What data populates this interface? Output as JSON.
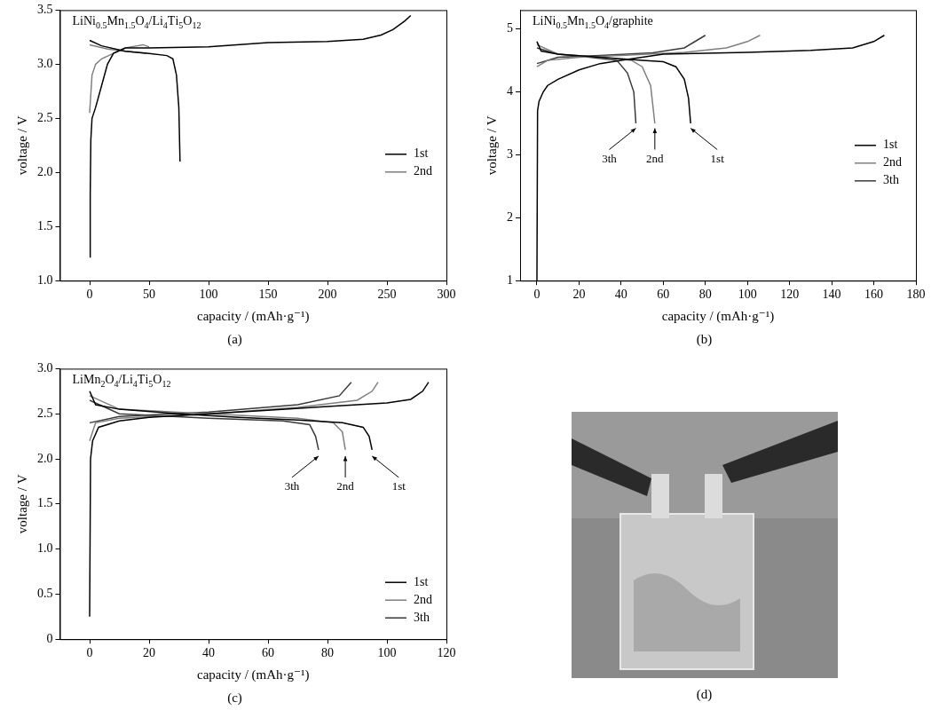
{
  "chart_data": [
    {
      "type": "line",
      "title": "LiNi0.5Mn1.5O4/Li4Ti5O12",
      "caption": "(a)",
      "x_label": "capacity / (mAh·g⁻¹)",
      "y_label": "voltage / V",
      "xlim": [
        -25,
        300
      ],
      "xticks": [
        0,
        50,
        100,
        150,
        200,
        250,
        300
      ],
      "ylim": [
        1,
        3.5
      ],
      "yticks": [
        {
          "value": 1,
          "label": "1.0"
        },
        1.5,
        {
          "value": 2,
          "label": "2.0"
        },
        2.5,
        {
          "value": 3,
          "label": "3.0"
        },
        3.5
      ],
      "grid": false,
      "legend": "center right",
      "series": [
        {
          "name": "1st",
          "color": "#000000",
          "x": [
            0,
            0.5,
            1,
            2,
            5,
            10,
            15,
            20,
            30,
            50,
            100,
            150,
            200,
            230,
            245,
            255,
            265,
            270,
            null,
            0,
            10,
            30,
            50,
            65,
            70,
            73,
            75,
            76
          ],
          "values": [
            1.22,
            1.8,
            2.3,
            2.5,
            2.6,
            2.8,
            3.0,
            3.1,
            3.15,
            3.15,
            3.16,
            3.2,
            3.21,
            3.23,
            3.27,
            3.32,
            3.4,
            3.45,
            null,
            3.22,
            3.17,
            3.12,
            3.1,
            3.08,
            3.05,
            2.9,
            2.6,
            2.1
          ]
        },
        {
          "name": "2nd",
          "color": "#7f7f7f",
          "x": [
            0,
            2,
            5,
            10,
            20,
            30,
            40,
            45,
            50,
            null,
            0,
            15,
            30,
            40,
            48
          ],
          "values": [
            2.55,
            2.9,
            3.0,
            3.05,
            3.1,
            3.15,
            3.17,
            3.18,
            3.16,
            null,
            3.18,
            3.14,
            3.12,
            3.11,
            3.1
          ]
        }
      ]
    },
    {
      "type": "line",
      "title": "LiNi0.5Mn1.5O4/graphite",
      "caption": "(b)",
      "x_label": "capacity / (mAh·g⁻¹)",
      "y_label": "voltage / V",
      "xlim": [
        -8,
        180
      ],
      "xticks": [
        0,
        20,
        40,
        60,
        80,
        100,
        120,
        140,
        160,
        180
      ],
      "ylim": [
        1,
        5.3
      ],
      "yticks": [
        1,
        2,
        3,
        4,
        5
      ],
      "grid": false,
      "legend": "center right",
      "series": [
        {
          "name": "1st",
          "color": "#000000",
          "x": [
            0,
            0.3,
            1,
            3,
            5,
            10,
            20,
            30,
            40,
            60,
            100,
            130,
            150,
            160,
            165,
            null,
            0,
            2,
            10,
            30,
            50,
            60,
            66,
            70,
            72,
            73
          ],
          "values": [
            1,
            3.7,
            3.85,
            4.0,
            4.1,
            4.2,
            4.35,
            4.45,
            4.5,
            4.6,
            4.63,
            4.66,
            4.7,
            4.8,
            4.9,
            null,
            4.8,
            4.65,
            4.6,
            4.55,
            4.5,
            4.48,
            4.4,
            4.2,
            3.9,
            3.5
          ]
        },
        {
          "name": "2nd",
          "color": "#7f7f7f",
          "x": [
            0,
            5,
            20,
            40,
            70,
            90,
            100,
            106,
            null,
            0,
            10,
            30,
            45,
            50,
            54,
            56
          ],
          "values": [
            4.4,
            4.5,
            4.55,
            4.58,
            4.63,
            4.7,
            4.8,
            4.9,
            null,
            4.75,
            4.6,
            4.55,
            4.5,
            4.4,
            4.1,
            3.5
          ]
        },
        {
          "name": "3th",
          "color": "#3a3a3a",
          "x": [
            0,
            10,
            30,
            55,
            70,
            80,
            null,
            0,
            10,
            25,
            38,
            43,
            46,
            47
          ],
          "values": [
            4.45,
            4.55,
            4.58,
            4.62,
            4.7,
            4.9,
            null,
            4.7,
            4.6,
            4.55,
            4.5,
            4.3,
            4.0,
            3.5
          ]
        }
      ],
      "annotations": [
        {
          "text": "3th",
          "x": 47,
          "y": 3.45
        },
        {
          "text": "2nd",
          "x": 56,
          "y": 3.45
        },
        {
          "text": "1st",
          "x": 73,
          "y": 3.45
        }
      ]
    },
    {
      "type": "line",
      "title": "LiMn2O4/Li4Ti5O12",
      "caption": "(c)",
      "x_label": "capacity / (mAh·g⁻¹)",
      "y_label": "voltage / V",
      "xlim": [
        -10,
        120
      ],
      "xticks": [
        0,
        20,
        40,
        60,
        80,
        100,
        120
      ],
      "ylim": [
        0,
        3
      ],
      "yticks": [
        0,
        0.5,
        {
          "value": 1,
          "label": "1.0"
        },
        1.5,
        {
          "value": 2,
          "label": "2.0"
        },
        2.5,
        {
          "value": 3,
          "label": "3.0"
        }
      ],
      "grid": false,
      "legend": "lower right",
      "series": [
        {
          "name": "1st",
          "color": "#000000",
          "x": [
            0,
            0.3,
            1,
            3,
            10,
            20,
            40,
            60,
            80,
            100,
            108,
            112,
            114,
            null,
            0,
            2,
            10,
            30,
            50,
            70,
            85,
            92,
            94,
            95
          ],
          "values": [
            0.25,
            2.0,
            2.2,
            2.35,
            2.42,
            2.46,
            2.5,
            2.54,
            2.58,
            2.62,
            2.66,
            2.75,
            2.85,
            null,
            2.75,
            2.6,
            2.55,
            2.5,
            2.46,
            2.43,
            2.4,
            2.35,
            2.25,
            2.1
          ]
        },
        {
          "name": "2nd",
          "color": "#7f7f7f",
          "x": [
            0,
            2,
            10,
            40,
            70,
            90,
            95,
            97,
            null,
            0,
            10,
            40,
            70,
            82,
            85,
            86
          ],
          "values": [
            2.2,
            2.4,
            2.45,
            2.5,
            2.57,
            2.65,
            2.75,
            2.85,
            null,
            2.7,
            2.55,
            2.5,
            2.45,
            2.4,
            2.3,
            2.1
          ]
        },
        {
          "name": "3th",
          "color": "#3a3a3a",
          "x": [
            0,
            10,
            40,
            70,
            84,
            88,
            null,
            0,
            10,
            40,
            65,
            74,
            76,
            77
          ],
          "values": [
            2.4,
            2.47,
            2.52,
            2.6,
            2.7,
            2.85,
            null,
            2.65,
            2.5,
            2.45,
            2.42,
            2.38,
            2.25,
            2.1
          ]
        }
      ],
      "annotations": [
        {
          "text": "3th",
          "x": 77,
          "y": 2.05
        },
        {
          "text": "2nd",
          "x": 86,
          "y": 2.05
        },
        {
          "text": "1st",
          "x": 95,
          "y": 2.05
        }
      ]
    }
  ],
  "photo": {
    "caption": "(d)"
  }
}
